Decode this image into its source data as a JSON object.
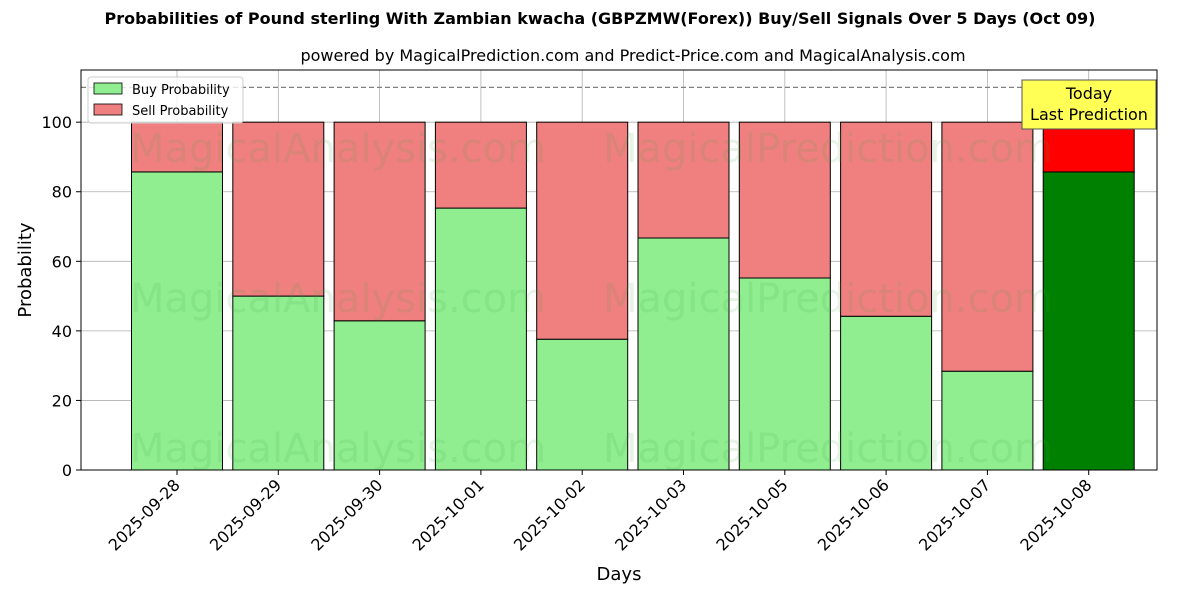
{
  "title": "Probabilities of Pound sterling With Zambian kwacha (GBPZMW(Forex)) Buy/Sell Signals Over 5 Days (Oct 09)",
  "subtitle": "powered by MagicalPrediction.com and Predict-Price.com and MagicalAnalysis.com",
  "watermarks": [
    "MagicalAnalysis.com",
    "MagicalPrediction.com"
  ],
  "annotation": {
    "line1": "Today",
    "line2": "Last Prediction"
  },
  "colors": {
    "buy": "#90ee90",
    "sell": "#f08080",
    "buy_today": "#008000",
    "sell_today": "#ff0000",
    "annotation_bg": "#ffff55"
  },
  "chart_data": {
    "type": "bar",
    "stacked": true,
    "title": "Probabilities of Pound sterling With Zambian kwacha (GBPZMW(Forex)) Buy/Sell Signals Over 5 Days (Oct 09)",
    "xlabel": "Days",
    "ylabel": "Probability",
    "ylim": [
      0,
      115
    ],
    "yticks": [
      0,
      20,
      40,
      60,
      80,
      100
    ],
    "grid": true,
    "legend_position": "top-left",
    "reference_line": 110,
    "categories": [
      "2025-09-28",
      "2025-09-29",
      "2025-09-30",
      "2025-10-01",
      "2025-10-02",
      "2025-10-03",
      "2025-10-05",
      "2025-10-06",
      "2025-10-07",
      "2025-10-08"
    ],
    "series": [
      {
        "name": "Buy Probability",
        "values": [
          85.7,
          50.0,
          42.9,
          75.3,
          37.6,
          66.7,
          55.2,
          44.2,
          28.4,
          85.7
        ]
      },
      {
        "name": "Sell Probability",
        "values": [
          14.3,
          50.0,
          57.1,
          24.7,
          62.4,
          33.3,
          44.8,
          55.8,
          71.6,
          14.3
        ]
      }
    ]
  }
}
